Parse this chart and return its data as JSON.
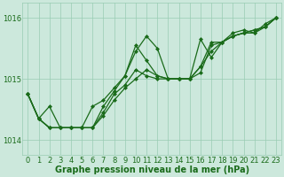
{
  "series": [
    {
      "x": [
        0,
        1,
        2,
        3,
        4,
        5,
        6,
        7,
        8,
        9,
        10,
        11,
        12,
        13,
        14,
        15,
        16,
        17,
        18,
        19,
        20,
        21,
        22,
        23
      ],
      "y": [
        1014.75,
        1014.35,
        1014.55,
        1014.2,
        1014.2,
        1014.2,
        1014.55,
        1014.65,
        1014.85,
        1015.05,
        1015.45,
        1015.7,
        1015.5,
        1015.0,
        1015.0,
        1015.0,
        1015.65,
        1015.35,
        1015.6,
        1015.75,
        1015.8,
        1015.75,
        1015.9,
        1016.0
      ]
    },
    {
      "x": [
        0,
        1,
        2,
        3,
        4,
        5,
        6,
        7,
        8,
        9,
        10,
        11,
        12,
        13,
        14,
        15,
        16,
        17,
        18,
        19,
        20,
        21,
        22,
        23
      ],
      "y": [
        1014.75,
        1014.35,
        1014.2,
        1014.2,
        1014.2,
        1014.2,
        1014.2,
        1014.4,
        1014.65,
        1014.85,
        1015.0,
        1015.15,
        1015.05,
        1015.0,
        1015.0,
        1015.0,
        1015.1,
        1015.55,
        1015.6,
        1015.7,
        1015.75,
        1015.8,
        1015.85,
        1016.0
      ]
    },
    {
      "x": [
        0,
        1,
        2,
        3,
        4,
        5,
        6,
        7,
        8,
        9,
        10,
        11,
        12,
        13,
        14,
        15,
        16,
        17,
        18,
        19,
        20,
        21,
        22,
        23
      ],
      "y": [
        1014.75,
        1014.35,
        1014.2,
        1014.2,
        1014.2,
        1014.2,
        1014.2,
        1014.55,
        1014.8,
        1015.05,
        1015.55,
        1015.3,
        1015.05,
        1015.0,
        1015.0,
        1015.0,
        1015.2,
        1015.45,
        1015.6,
        1015.7,
        1015.75,
        1015.75,
        1015.85,
        1016.0
      ]
    },
    {
      "x": [
        0,
        1,
        2,
        3,
        4,
        5,
        6,
        7,
        8,
        9,
        10,
        11,
        12,
        13,
        14,
        15,
        16,
        17,
        18,
        19,
        20,
        21,
        22,
        23
      ],
      "y": [
        1014.75,
        1014.35,
        1014.2,
        1014.2,
        1014.2,
        1014.2,
        1014.2,
        1014.45,
        1014.75,
        1014.9,
        1015.15,
        1015.05,
        1015.0,
        1015.0,
        1015.0,
        1015.0,
        1015.2,
        1015.6,
        1015.6,
        1015.7,
        1015.75,
        1015.8,
        1015.85,
        1016.0
      ]
    }
  ],
  "line_color": "#1a6b1a",
  "marker": "D",
  "marker_size": 2.0,
  "linewidth": 0.9,
  "bg_color": "#cce8dc",
  "grid_color": "#99ccb3",
  "text_color": "#1a6b1a",
  "xlabel": "Graphe pression niveau de la mer (hPa)",
  "yticks": [
    1014,
    1015,
    1016
  ],
  "ylim": [
    1013.75,
    1016.25
  ],
  "xlim": [
    -0.5,
    23.5
  ],
  "xticks": [
    0,
    1,
    2,
    3,
    4,
    5,
    6,
    7,
    8,
    9,
    10,
    11,
    12,
    13,
    14,
    15,
    16,
    17,
    18,
    19,
    20,
    21,
    22,
    23
  ],
  "xlabel_fontsize": 7.0,
  "tick_fontsize": 6.0,
  "figsize": [
    3.2,
    2.0
  ],
  "dpi": 100
}
